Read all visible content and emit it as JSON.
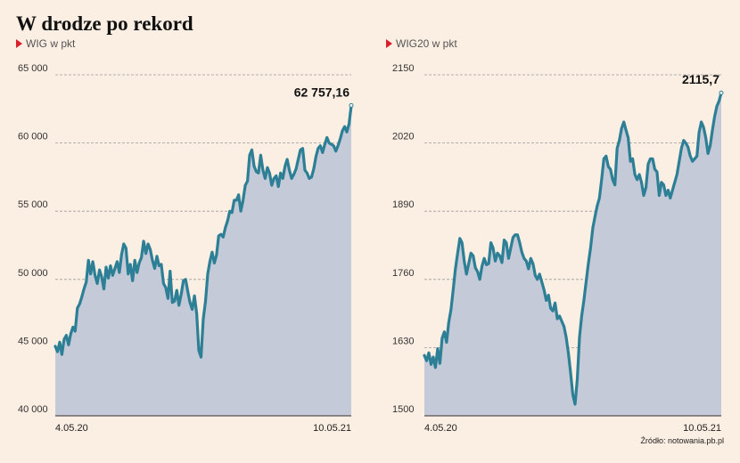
{
  "title": "W drodze po rekord",
  "source": "Źródło: notowania.pb.pl",
  "colors": {
    "line": "#2d7f96",
    "fill": "#c5cad9",
    "marker": "#d9202a",
    "grid": "#9b9b9b"
  },
  "chart_data": [
    {
      "type": "area",
      "subtitle": "WIG w pkt",
      "last_value_label": "62 757,16",
      "ylim": [
        40000,
        65000
      ],
      "y_ticks": [
        40000,
        45000,
        50000,
        55000,
        60000,
        65000
      ],
      "y_tick_labels": [
        "40 000",
        "45 000",
        "50 000",
        "55 000",
        "60 000",
        "65 000"
      ],
      "x_tick_labels": [
        "4.05.20",
        "10.05.21"
      ],
      "values": [
        45100,
        44700,
        45400,
        44500,
        45600,
        45900,
        45200,
        46000,
        46500,
        46200,
        47900,
        48200,
        48700,
        49300,
        49800,
        51400,
        50400,
        51300,
        50300,
        49700,
        50700,
        50200,
        49300,
        50900,
        50100,
        51000,
        50300,
        50800,
        51300,
        50500,
        51800,
        52600,
        52300,
        50400,
        51100,
        49900,
        51400,
        50500,
        51200,
        51600,
        52800,
        51900,
        52600,
        52200,
        51400,
        50800,
        51700,
        51000,
        51100,
        49700,
        49400,
        48600,
        50600,
        48300,
        48400,
        49200,
        48100,
        48900,
        49900,
        50000,
        49100,
        48300,
        47800,
        48800,
        47500,
        44800,
        44300,
        47100,
        48400,
        50400,
        51300,
        52000,
        51200,
        51800,
        53200,
        53300,
        53100,
        53800,
        54300,
        55000,
        54900,
        55800,
        55800,
        56200,
        55000,
        55800,
        56900,
        57200,
        59100,
        59500,
        58300,
        57900,
        57800,
        59100,
        58000,
        57400,
        58200,
        57800,
        56900,
        57400,
        57600,
        56800,
        57800,
        57400,
        58300,
        58800,
        58000,
        57400,
        57700,
        58100,
        58800,
        59500,
        59600,
        58000,
        57800,
        57400,
        57500,
        58100,
        59000,
        59600,
        59800,
        59300,
        59900,
        60400,
        60000,
        59900,
        59800,
        59400,
        59800,
        60300,
        60900,
        61200,
        60800,
        61400,
        62757
      ]
    },
    {
      "type": "area",
      "subtitle": "WIG20 w pkt",
      "last_value_label": "2115,7",
      "ylim": [
        1500,
        2150
      ],
      "y_ticks": [
        1500,
        1630,
        1760,
        1890,
        2020,
        2150
      ],
      "y_tick_labels": [
        "1500",
        "1630",
        "1760",
        "1890",
        "2020",
        "2150"
      ],
      "x_tick_labels": [
        "4.05.20",
        "10.05.21"
      ],
      "values": [
        1615,
        1605,
        1620,
        1598,
        1612,
        1592,
        1628,
        1600,
        1648,
        1660,
        1640,
        1678,
        1702,
        1740,
        1780,
        1810,
        1838,
        1830,
        1795,
        1770,
        1790,
        1810,
        1805,
        1782,
        1775,
        1760,
        1785,
        1800,
        1788,
        1790,
        1830,
        1820,
        1795,
        1810,
        1805,
        1792,
        1835,
        1830,
        1800,
        1820,
        1840,
        1845,
        1845,
        1830,
        1812,
        1800,
        1795,
        1780,
        1800,
        1790,
        1768,
        1760,
        1770,
        1755,
        1740,
        1720,
        1730,
        1705,
        1700,
        1715,
        1685,
        1690,
        1680,
        1670,
        1650,
        1620,
        1582,
        1540,
        1522,
        1570,
        1650,
        1690,
        1720,
        1755,
        1790,
        1820,
        1858,
        1880,
        1900,
        1915,
        1950,
        1990,
        1995,
        1975,
        1970,
        1950,
        1940,
        2010,
        2025,
        2048,
        2060,
        2045,
        2030,
        1985,
        1990,
        1960,
        1950,
        1960,
        1945,
        1920,
        1935,
        1980,
        1990,
        1990,
        1970,
        1965,
        1920,
        1945,
        1940,
        1920,
        1930,
        1915,
        1930,
        1945,
        1960,
        1985,
        2010,
        2025,
        2020,
        2012,
        1995,
        1985,
        1990,
        1995,
        2040,
        2060,
        2050,
        2030,
        2000,
        2015,
        2045,
        2070,
        2090,
        2100,
        2115.7
      ]
    }
  ]
}
